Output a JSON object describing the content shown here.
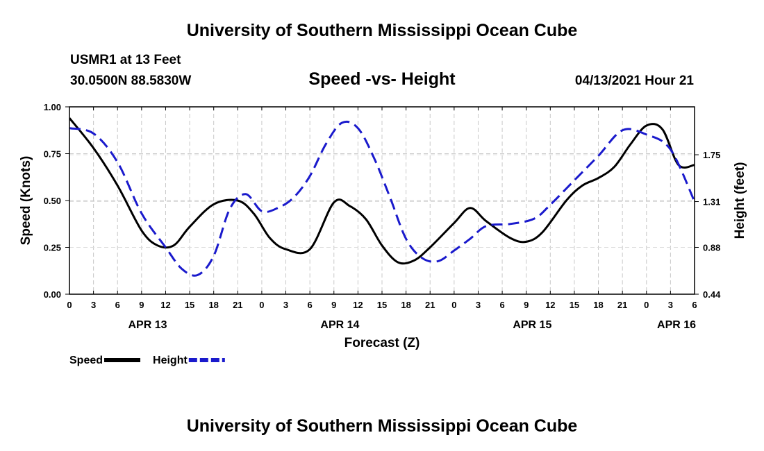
{
  "header": {
    "title": "University of Southern Mississippi Ocean Cube",
    "station": "USMR1 at 13 Feet",
    "coords": "30.0500N  88.5830W",
    "datetime": "04/13/2021 Hour 21"
  },
  "footer": {
    "title": "University of Southern Mississippi Ocean Cube"
  },
  "chart_data": {
    "type": "line",
    "title": "Speed -vs- Height",
    "xlabel": "Forecast (Z)",
    "ylabel": "Speed (Knots)",
    "y2label": "Height (feet)",
    "x_range": [
      0,
      78
    ],
    "ylim": [
      0,
      1
    ],
    "y2lim": [
      0.44,
      2.2
    ],
    "y_ticks": [
      0,
      0.25,
      0.5,
      0.75,
      1.0
    ],
    "y_tick_labels": [
      "0.00",
      "0.25",
      "0.50",
      "0.75",
      "1.00"
    ],
    "y2_ticks": [
      0.44,
      0.88,
      1.31,
      1.75
    ],
    "y2_tick_labels": [
      "0.44",
      "0.88",
      "1.31",
      "1.75"
    ],
    "x_ticks": [
      0,
      3,
      6,
      9,
      12,
      15,
      18,
      21,
      24,
      27,
      30,
      33,
      36,
      39,
      42,
      45,
      48,
      51,
      54,
      57,
      60,
      63,
      66,
      69,
      72,
      75,
      78
    ],
    "x_tick_labels": [
      "0",
      "3",
      "6",
      "9",
      "12",
      "15",
      "18",
      "21",
      "0",
      "3",
      "6",
      "9",
      "12",
      "15",
      "18",
      "21",
      "0",
      "3",
      "6",
      "9",
      "12",
      "15",
      "18",
      "21",
      "0",
      "3",
      "6"
    ],
    "date_labels": [
      {
        "label": "APR 13",
        "x": 9.75
      },
      {
        "label": "APR 14",
        "x": 33.75
      },
      {
        "label": "APR 15",
        "x": 57.75
      },
      {
        "label": "APR 16",
        "x": 75.75
      }
    ],
    "series": [
      {
        "name": "Speed",
        "axis": "left",
        "color": "#000000",
        "style": "solid",
        "x": [
          0,
          3,
          6,
          9,
          11,
          13,
          15,
          18,
          21,
          23,
          25,
          27,
          30,
          33,
          35,
          37,
          39,
          41,
          43,
          45,
          48,
          50,
          52,
          55,
          57,
          59,
          62,
          64,
          66,
          68,
          70,
          72,
          74,
          76,
          78
        ],
        "values": [
          0.94,
          0.78,
          0.58,
          0.34,
          0.26,
          0.26,
          0.36,
          0.48,
          0.5,
          0.43,
          0.3,
          0.24,
          0.24,
          0.49,
          0.47,
          0.4,
          0.26,
          0.17,
          0.18,
          0.25,
          0.38,
          0.46,
          0.39,
          0.3,
          0.28,
          0.33,
          0.5,
          0.58,
          0.62,
          0.68,
          0.8,
          0.9,
          0.88,
          0.69,
          0.69
        ]
      },
      {
        "name": "Height",
        "axis": "right",
        "color": "#1a1acc",
        "style": "dashed",
        "x": [
          0,
          3,
          6,
          9,
          12,
          14,
          16,
          18,
          20,
          22,
          24,
          26,
          28,
          30,
          32,
          34,
          36,
          38,
          40,
          42,
          44,
          46,
          48,
          50,
          52,
          55,
          58,
          60,
          63,
          66,
          69,
          72,
          75,
          78
        ],
        "values": [
          2.0,
          1.95,
          1.68,
          1.2,
          0.88,
          0.68,
          0.62,
          0.8,
          1.24,
          1.38,
          1.22,
          1.25,
          1.35,
          1.55,
          1.85,
          2.05,
          2.0,
          1.72,
          1.35,
          0.96,
          0.78,
          0.75,
          0.85,
          0.96,
          1.08,
          1.1,
          1.15,
          1.28,
          1.51,
          1.74,
          1.98,
          1.94,
          1.8,
          1.31
        ]
      }
    ],
    "legend": [
      {
        "label": "Speed",
        "color": "#000000",
        "style": "solid"
      },
      {
        "label": "Height",
        "color": "#1a1acc",
        "style": "dashed"
      }
    ]
  }
}
